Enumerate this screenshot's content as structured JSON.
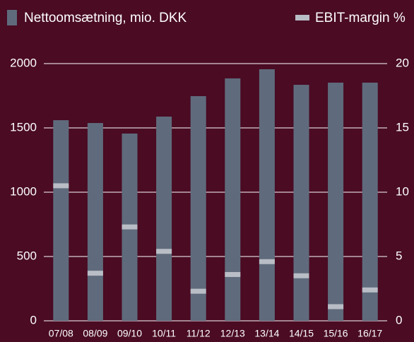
{
  "chart_data": {
    "type": "bar",
    "categories": [
      "07/08",
      "08/09",
      "09/10",
      "10/11",
      "11/12",
      "12/13",
      "13/14",
      "14/15",
      "15/16",
      "16/17"
    ],
    "series": [
      {
        "name": "Nettoomsætning, mio. DKK",
        "color": "#5f6b7c",
        "values": [
          1560,
          1538,
          1456,
          1588,
          1747,
          1885,
          1956,
          1835,
          1852,
          1852
        ]
      },
      {
        "name": "EBIT-margin %",
        "color": "#b9bdc5",
        "axis": "y2",
        "values": [
          10.5,
          3.7,
          7.3,
          5.4,
          2.3,
          3.6,
          4.6,
          3.5,
          1.1,
          2.4
        ]
      }
    ],
    "ylim": [
      0,
      2000
    ],
    "yticks": [
      0,
      500,
      1000,
      1500,
      2000
    ],
    "y2lim": [
      0,
      20
    ],
    "y2ticks": [
      0,
      5,
      10,
      15,
      20
    ],
    "grid": true
  }
}
